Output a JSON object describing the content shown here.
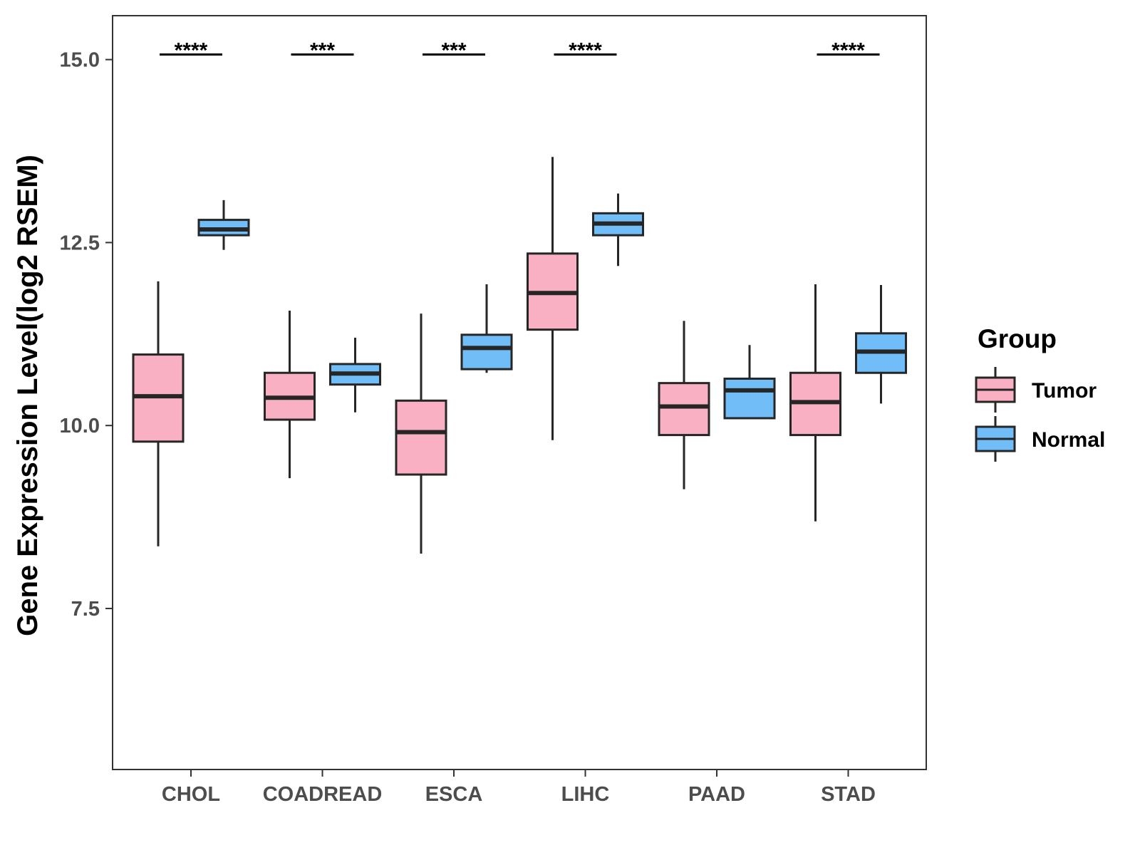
{
  "chart_data": {
    "type": "boxplot",
    "title": "",
    "xlabel": "",
    "ylabel": "Gene Expression Level(log2 RSEM)",
    "ylim": [
      5.3,
      15.6
    ],
    "yticks": [
      "7.5",
      "10.0",
      "12.5",
      "15.0"
    ],
    "categories": [
      "CHOL",
      "COADREAD",
      "ESCA",
      "LIHC",
      "PAAD",
      "STAD"
    ],
    "legend": {
      "title": "Group",
      "position": "right"
    },
    "colors": {
      "Tumor": "#f9b0c3",
      "Normal": "#70bdf7",
      "outline": "#262626"
    },
    "series": [
      {
        "name": "Tumor",
        "boxes": [
          {
            "category": "CHOL",
            "whisker_low": 8.35,
            "q1": 9.78,
            "median": 10.4,
            "q3": 10.97,
            "whisker_high": 11.97
          },
          {
            "category": "COADREAD",
            "whisker_low": 9.28,
            "q1": 10.08,
            "median": 10.38,
            "q3": 10.72,
            "whisker_high": 11.57
          },
          {
            "category": "ESCA",
            "whisker_low": 8.25,
            "q1": 9.33,
            "median": 9.91,
            "q3": 10.34,
            "whisker_high": 11.53
          },
          {
            "category": "LIHC",
            "whisker_low": 9.8,
            "q1": 11.31,
            "median": 11.81,
            "q3": 12.35,
            "whisker_high": 13.67
          },
          {
            "category": "PAAD",
            "whisker_low": 9.13,
            "q1": 9.87,
            "median": 10.26,
            "q3": 10.58,
            "whisker_high": 11.43
          },
          {
            "category": "STAD",
            "whisker_low": 8.69,
            "q1": 9.87,
            "median": 10.32,
            "q3": 10.72,
            "whisker_high": 11.93
          }
        ]
      },
      {
        "name": "Normal",
        "boxes": [
          {
            "category": "CHOL",
            "whisker_low": 12.4,
            "q1": 12.6,
            "median": 12.68,
            "q3": 12.81,
            "whisker_high": 13.08
          },
          {
            "category": "COADREAD",
            "whisker_low": 10.18,
            "q1": 10.56,
            "median": 10.71,
            "q3": 10.84,
            "whisker_high": 11.2
          },
          {
            "category": "ESCA",
            "whisker_low": 10.72,
            "q1": 10.77,
            "median": 11.06,
            "q3": 11.24,
            "whisker_high": 11.93
          },
          {
            "category": "LIHC",
            "whisker_low": 12.18,
            "q1": 12.6,
            "median": 12.76,
            "q3": 12.9,
            "whisker_high": 13.17
          },
          {
            "category": "PAAD",
            "whisker_low": 10.1,
            "q1": 10.1,
            "median": 10.48,
            "q3": 10.64,
            "whisker_high": 11.1
          },
          {
            "category": "STAD",
            "whisker_low": 10.3,
            "q1": 10.72,
            "median": 11.01,
            "q3": 11.26,
            "whisker_high": 11.92
          }
        ]
      }
    ],
    "significance": [
      {
        "category": "CHOL",
        "label": "****",
        "y": 15.07
      },
      {
        "category": "COADREAD",
        "label": "***",
        "y": 15.07
      },
      {
        "category": "ESCA",
        "label": "***",
        "y": 15.07
      },
      {
        "category": "LIHC",
        "label": "****",
        "y": 15.07
      },
      {
        "category": "STAD",
        "label": "****",
        "y": 15.07
      }
    ]
  }
}
